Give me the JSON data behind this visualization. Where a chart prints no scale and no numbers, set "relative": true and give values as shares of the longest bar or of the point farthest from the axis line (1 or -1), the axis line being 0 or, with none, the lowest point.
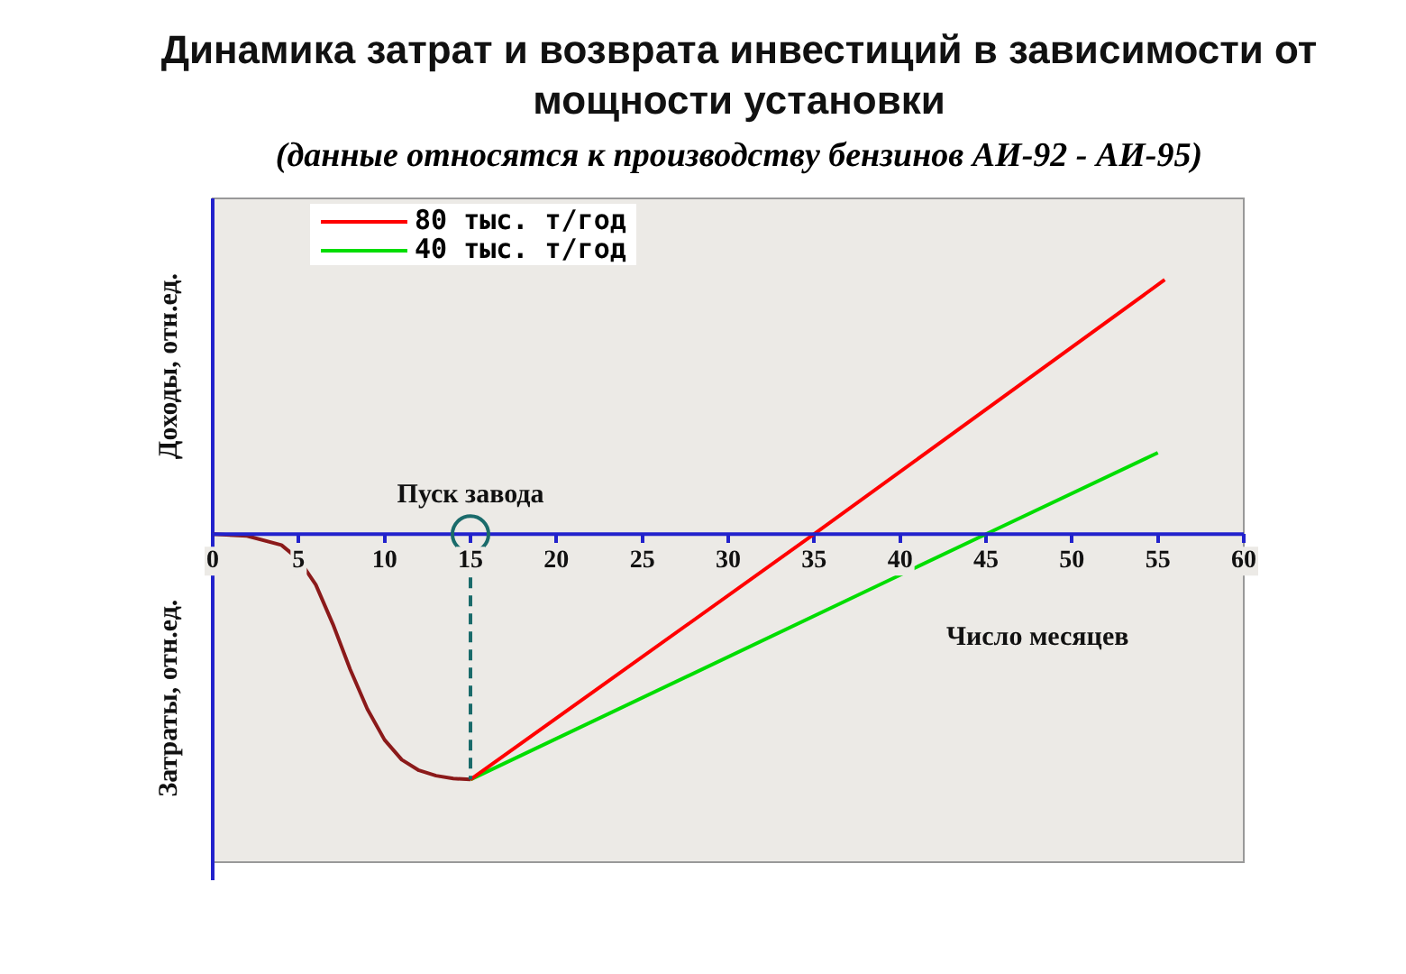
{
  "chart_data": {
    "type": "line",
    "title": "Динамика затрат и возврата инвестиций в зависимости от мощности установки",
    "subtitle": "(данные относятся к производству бензинов АИ-92 - АИ-95)",
    "xlabel": "Число месяцев",
    "ylabel": "Доходы, отн.ед.",
    "y2label": "Затраты, отн.ед.",
    "relative": true,
    "xlim": [
      0,
      60
    ],
    "xticks": [
      0,
      5,
      10,
      15,
      20,
      25,
      30,
      35,
      40,
      45,
      50,
      55,
      60
    ],
    "grid": false,
    "legend": "top left",
    "marker": "none",
    "series": [
      {
        "color": "#8b1a1a",
        "x": [
          0,
          2,
          4,
          5,
          6,
          7,
          8,
          9,
          10,
          11,
          12,
          13,
          14,
          15
        ],
        "values": [
          0,
          -0.007,
          -0.043,
          -0.099,
          -0.199,
          -0.355,
          -0.532,
          -0.688,
          -0.809,
          -0.887,
          -0.929,
          -0.95,
          -0.961,
          -0.965
        ]
      },
      {
        "name": "80 тыс. т/год",
        "color": "#ff0000",
        "x": [
          15,
          35,
          55.4
        ],
        "values": [
          -0.965,
          0,
          1
        ]
      },
      {
        "name": "40 тыс. т/год",
        "color": "#00dd00",
        "x": [
          15,
          45,
          55
        ],
        "values": [
          -0.965,
          0,
          0.32
        ]
      }
    ],
    "annotations": [
      {
        "text": "Пуск завода",
        "x": 15,
        "y": 0
      }
    ],
    "ref_lines": [
      {
        "axis": "x",
        "value": 15,
        "color": "#1a6b6b",
        "line_style": "dashed"
      }
    ]
  }
}
